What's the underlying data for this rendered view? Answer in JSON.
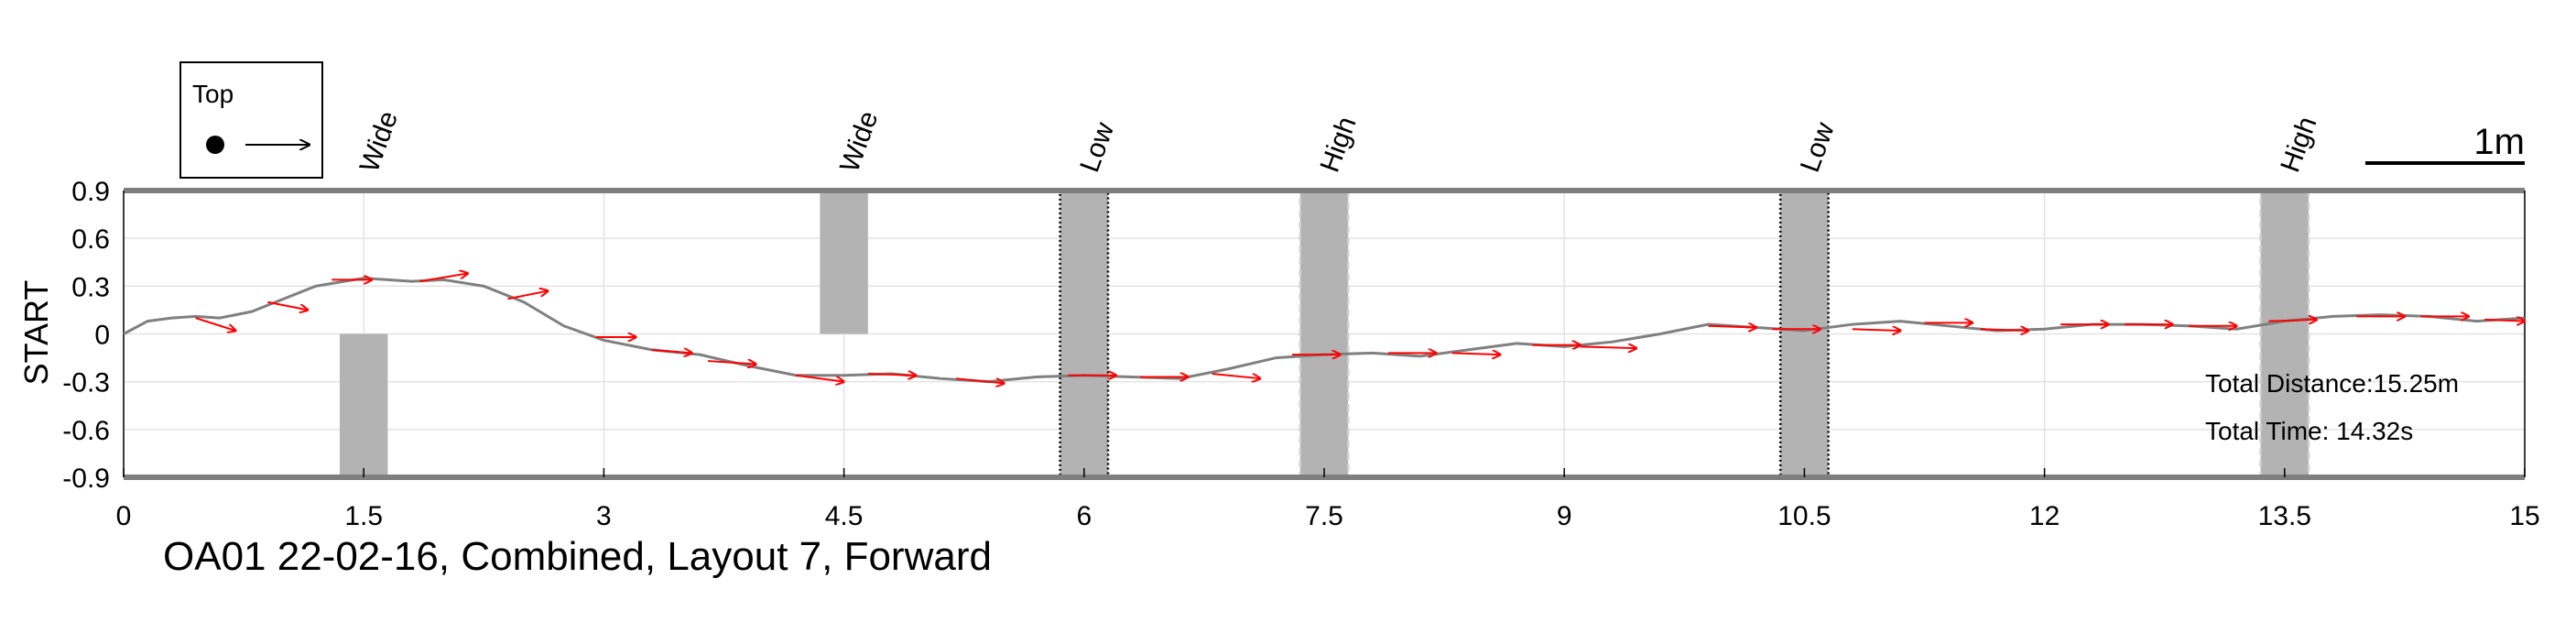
{
  "chart_data": {
    "type": "line",
    "title": "OA01 22-02-16, Combined, Layout 7, Forward",
    "xlabel": "",
    "ylabel": "START",
    "xlim": [
      0,
      15
    ],
    "ylim": [
      -0.9,
      0.9
    ],
    "xticks": [
      "0",
      "1.5",
      "3",
      "4.5",
      "6",
      "7.5",
      "9",
      "10.5",
      "12",
      "13.5",
      "15"
    ],
    "yticks": [
      "0.9",
      "0.6",
      "0.3",
      "0",
      "-0.3",
      "-0.6",
      "-0.9"
    ],
    "grid": true,
    "legend": {
      "title": "Top",
      "placement": "top-left"
    },
    "scale_bar_label": "1m",
    "annotations": {
      "total_distance": "Total Distance:15.25m",
      "total_time": "Total Time: 14.32s"
    },
    "colors": {
      "path": "#808080",
      "arrows": "#ff0000",
      "obstacle": "#b3b3b3",
      "axis": "#7f7f7f"
    },
    "obstacles": [
      {
        "label": "Wide",
        "x_start": 1.35,
        "x_end": 1.65,
        "y_start": -0.9,
        "y_end": 0.0,
        "border": "none"
      },
      {
        "label": "Wide",
        "x_start": 4.35,
        "x_end": 4.65,
        "y_start": 0.0,
        "y_end": 0.9,
        "border": "none"
      },
      {
        "label": "Low",
        "x_start": 5.85,
        "x_end": 6.15,
        "y_start": -0.9,
        "y_end": 0.9,
        "border": "dotted"
      },
      {
        "label": "High",
        "x_start": 7.35,
        "x_end": 7.65,
        "y_start": -0.9,
        "y_end": 0.9,
        "border": "dashed"
      },
      {
        "label": "Low",
        "x_start": 10.35,
        "x_end": 10.65,
        "y_start": -0.9,
        "y_end": 0.9,
        "border": "dotted"
      },
      {
        "label": "High",
        "x_start": 13.35,
        "x_end": 13.65,
        "y_start": -0.9,
        "y_end": 0.9,
        "border": "dashed"
      }
    ],
    "path": {
      "x": [
        0,
        0.15,
        0.3,
        0.45,
        0.6,
        0.8,
        1.0,
        1.2,
        1.5,
        1.8,
        2.0,
        2.25,
        2.5,
        2.75,
        3.0,
        3.3,
        3.6,
        3.9,
        4.2,
        4.5,
        4.8,
        5.1,
        5.4,
        5.7,
        6.0,
        6.3,
        6.6,
        6.9,
        7.2,
        7.5,
        7.8,
        8.1,
        8.4,
        8.7,
        9.0,
        9.3,
        9.6,
        9.9,
        10.2,
        10.5,
        10.8,
        11.1,
        11.4,
        11.7,
        12.0,
        12.3,
        12.6,
        12.9,
        13.2,
        13.5,
        13.8,
        14.1,
        14.4,
        14.7,
        15.0
      ],
      "y": [
        0.0,
        0.08,
        0.1,
        0.11,
        0.1,
        0.14,
        0.22,
        0.3,
        0.35,
        0.33,
        0.34,
        0.3,
        0.2,
        0.05,
        -0.04,
        -0.1,
        -0.13,
        -0.2,
        -0.26,
        -0.26,
        -0.25,
        -0.28,
        -0.3,
        -0.27,
        -0.26,
        -0.27,
        -0.28,
        -0.22,
        -0.15,
        -0.13,
        -0.12,
        -0.14,
        -0.1,
        -0.06,
        -0.08,
        -0.05,
        0.0,
        0.06,
        0.04,
        0.02,
        0.06,
        0.08,
        0.05,
        0.02,
        0.03,
        0.06,
        0.06,
        0.05,
        0.03,
        0.08,
        0.11,
        0.12,
        0.11,
        0.08,
        0.1
      ]
    },
    "arrows": [
      {
        "x": 0.45,
        "y": 0.1,
        "dx": 0.25,
        "dy": -0.08
      },
      {
        "x": 0.9,
        "y": 0.2,
        "dx": 0.25,
        "dy": -0.05
      },
      {
        "x": 1.3,
        "y": 0.34,
        "dx": 0.25,
        "dy": 0.0
      },
      {
        "x": 1.85,
        "y": 0.33,
        "dx": 0.3,
        "dy": 0.05
      },
      {
        "x": 2.4,
        "y": 0.22,
        "dx": 0.25,
        "dy": 0.05
      },
      {
        "x": 2.95,
        "y": -0.02,
        "dx": 0.25,
        "dy": 0.0
      },
      {
        "x": 3.3,
        "y": -0.1,
        "dx": 0.25,
        "dy": -0.02
      },
      {
        "x": 3.65,
        "y": -0.17,
        "dx": 0.3,
        "dy": -0.02
      },
      {
        "x": 4.2,
        "y": -0.26,
        "dx": 0.3,
        "dy": -0.04
      },
      {
        "x": 4.65,
        "y": -0.25,
        "dx": 0.3,
        "dy": -0.01
      },
      {
        "x": 5.2,
        "y": -0.28,
        "dx": 0.3,
        "dy": -0.03
      },
      {
        "x": 5.9,
        "y": -0.26,
        "dx": 0.3,
        "dy": 0.0
      },
      {
        "x": 6.35,
        "y": -0.27,
        "dx": 0.3,
        "dy": 0.0
      },
      {
        "x": 6.8,
        "y": -0.25,
        "dx": 0.3,
        "dy": -0.03
      },
      {
        "x": 7.3,
        "y": -0.13,
        "dx": 0.3,
        "dy": 0.0
      },
      {
        "x": 7.9,
        "y": -0.12,
        "dx": 0.3,
        "dy": 0.0
      },
      {
        "x": 8.3,
        "y": -0.12,
        "dx": 0.3,
        "dy": -0.01
      },
      {
        "x": 8.8,
        "y": -0.07,
        "dx": 0.3,
        "dy": 0.0
      },
      {
        "x": 9.1,
        "y": -0.08,
        "dx": 0.35,
        "dy": -0.01
      },
      {
        "x": 9.9,
        "y": 0.05,
        "dx": 0.3,
        "dy": -0.01
      },
      {
        "x": 10.3,
        "y": 0.03,
        "dx": 0.3,
        "dy": 0.0
      },
      {
        "x": 10.8,
        "y": 0.03,
        "dx": 0.3,
        "dy": -0.01
      },
      {
        "x": 11.25,
        "y": 0.07,
        "dx": 0.3,
        "dy": 0.0
      },
      {
        "x": 11.6,
        "y": 0.03,
        "dx": 0.3,
        "dy": -0.01
      },
      {
        "x": 12.1,
        "y": 0.06,
        "dx": 0.3,
        "dy": 0.0
      },
      {
        "x": 12.5,
        "y": 0.06,
        "dx": 0.3,
        "dy": 0.0
      },
      {
        "x": 12.9,
        "y": 0.05,
        "dx": 0.3,
        "dy": 0.0
      },
      {
        "x": 13.4,
        "y": 0.08,
        "dx": 0.3,
        "dy": 0.01
      },
      {
        "x": 13.95,
        "y": 0.11,
        "dx": 0.3,
        "dy": 0.0
      },
      {
        "x": 14.35,
        "y": 0.11,
        "dx": 0.3,
        "dy": 0.0
      },
      {
        "x": 14.75,
        "y": 0.09,
        "dx": 0.25,
        "dy": -0.01
      }
    ]
  }
}
